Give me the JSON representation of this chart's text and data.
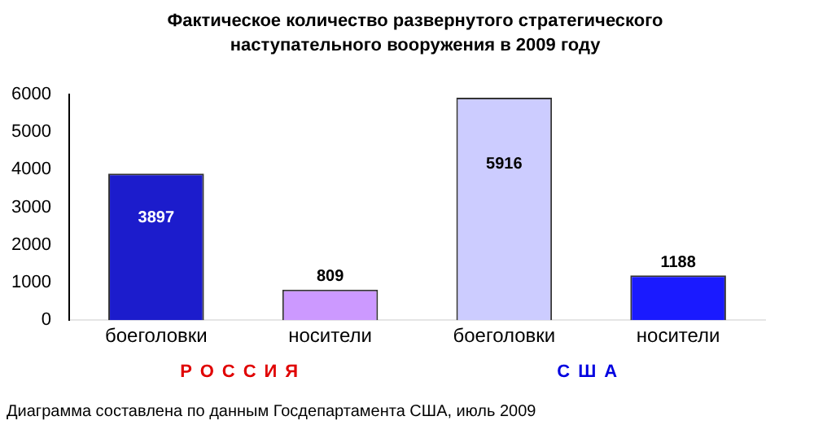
{
  "chart_data": {
    "type": "bar",
    "title": "Фактическое количество развернутого стратегического наступательного вооружения в 2009 году",
    "categories": [
      "боеголовки",
      "носители",
      "боеголовки",
      "носители"
    ],
    "values": [
      3897,
      809,
      5916,
      1188
    ],
    "colors": [
      "#1c1ccc",
      "#cc99ff",
      "#ccccff",
      "#1a1aff"
    ],
    "ylim": [
      0,
      6000
    ],
    "yticks": [
      0,
      1000,
      2000,
      3000,
      4000,
      5000,
      6000
    ],
    "grid": false,
    "data_labels": true,
    "annotations": [
      "РОССИЯ",
      "США",
      "Диаграмма составлена по данным Госдепартамента США, июль 2009"
    ]
  }
}
